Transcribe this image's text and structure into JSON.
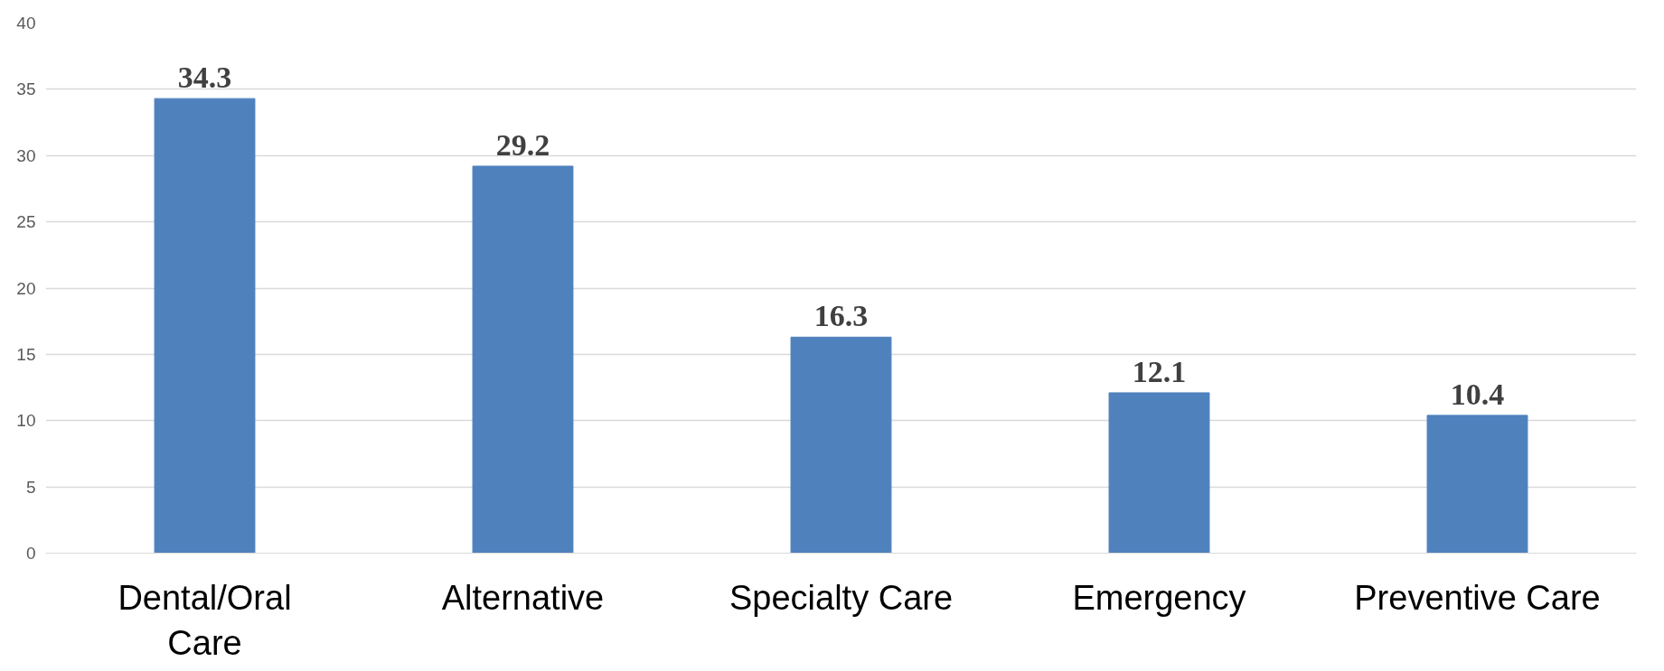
{
  "chart_data": {
    "type": "bar",
    "categories": [
      "Dental/Oral Care",
      "Alternative",
      "Specialty Care",
      "Emergency",
      "Preventive Care"
    ],
    "values": [
      34.3,
      29.2,
      16.3,
      12.1,
      10.4
    ],
    "color": "#4f81bd",
    "ylim": [
      0,
      40
    ],
    "yticks": [
      0,
      5,
      10,
      15,
      20,
      25,
      30,
      35,
      40
    ],
    "grid": "y",
    "data_labels": true
  }
}
